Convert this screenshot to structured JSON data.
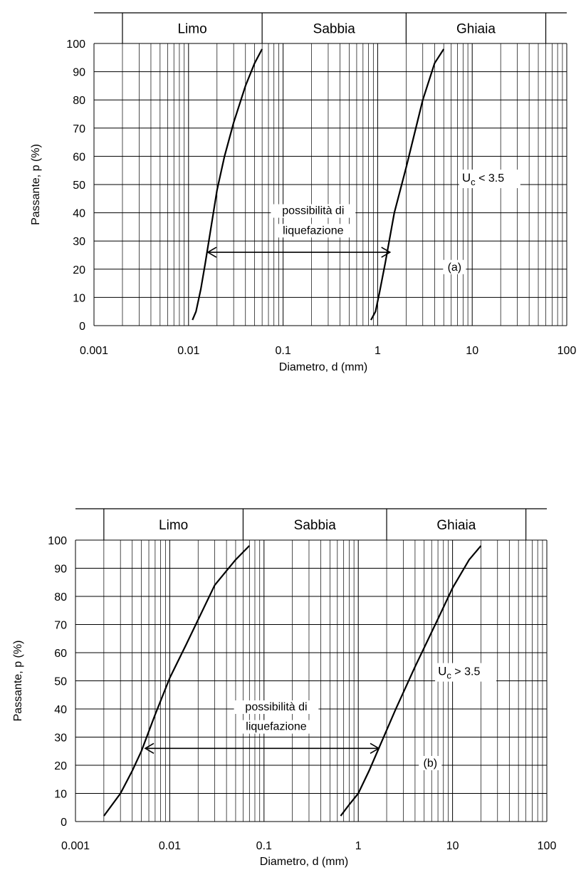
{
  "chart_data": [
    {
      "type": "line",
      "panel_label": "(a)",
      "xscale": "log",
      "xlim": [
        0.001,
        100
      ],
      "ylim": [
        0,
        100
      ],
      "xlabel": "Diametro, d (mm)",
      "ylabel": "Passante, p (%)",
      "x_tick_labels": [
        "0.001",
        "0.01",
        "0.1",
        "1",
        "10",
        "100"
      ],
      "y_tick_labels": [
        "0",
        "10",
        "20",
        "30",
        "40",
        "50",
        "60",
        "70",
        "80",
        "90",
        "100"
      ],
      "grid": true,
      "bands": [
        {
          "label": "Limo",
          "from": 0.002,
          "to": 0.06
        },
        {
          "label": "Sabbia",
          "from": 0.06,
          "to": 2
        },
        {
          "label": "Ghiaia",
          "from": 2,
          "to": 60
        }
      ],
      "series": [
        {
          "x": [
            0.011,
            0.012,
            0.0135,
            0.015,
            0.02,
            0.024,
            0.03,
            0.04,
            0.05,
            0.06
          ],
          "y": [
            2,
            5,
            13,
            22,
            48,
            60,
            72,
            85,
            93,
            98
          ]
        },
        {
          "x": [
            0.85,
            0.95,
            1.05,
            1.2,
            1.5,
            2.0,
            3.0,
            4.0,
            5.0
          ],
          "y": [
            2,
            5,
            12,
            22,
            40,
            56,
            80,
            93,
            98
          ]
        }
      ],
      "arrow": {
        "y": 26,
        "x_from": 0.016,
        "x_to": 1.35
      },
      "annotation_text": [
        "possibilità di",
        "liquefazione"
      ],
      "condition": {
        "symbol": "U",
        "subscript": "c",
        "text": " < 3.5"
      }
    },
    {
      "type": "line",
      "panel_label": "(b)",
      "xscale": "log",
      "xlim": [
        0.001,
        100
      ],
      "ylim": [
        0,
        100
      ],
      "xlabel": "Diametro, d (mm)",
      "ylabel": "Passante, p (%)",
      "x_tick_labels": [
        "0.001",
        "0.01",
        "0.1",
        "1",
        "10",
        "100"
      ],
      "y_tick_labels": [
        "0",
        "10",
        "20",
        "30",
        "40",
        "50",
        "60",
        "70",
        "80",
        "90",
        "100"
      ],
      "grid": true,
      "bands": [
        {
          "label": "Limo",
          "from": 0.002,
          "to": 0.06
        },
        {
          "label": "Sabbia",
          "from": 0.06,
          "to": 2
        },
        {
          "label": "Ghiaia",
          "from": 2,
          "to": 60
        }
      ],
      "series": [
        {
          "x": [
            0.002,
            0.003,
            0.004,
            0.005,
            0.007,
            0.01,
            0.015,
            0.03,
            0.05,
            0.07
          ],
          "y": [
            2,
            10,
            18,
            25,
            38,
            51,
            63,
            84,
            93,
            98
          ]
        },
        {
          "x": [
            0.65,
            0.8,
            1.0,
            1.3,
            1.7,
            2.5,
            4.0,
            7.0,
            10,
            15,
            20
          ],
          "y": [
            2,
            6,
            10,
            18,
            27,
            40,
            55,
            72,
            83,
            93,
            98
          ]
        }
      ],
      "arrow": {
        "y": 26,
        "x_from": 0.0055,
        "x_to": 1.65
      },
      "annotation_text": [
        "possibilità di",
        "liquefazione"
      ],
      "condition": {
        "symbol": "U",
        "subscript": "c",
        "text": " > 3.5"
      }
    }
  ]
}
